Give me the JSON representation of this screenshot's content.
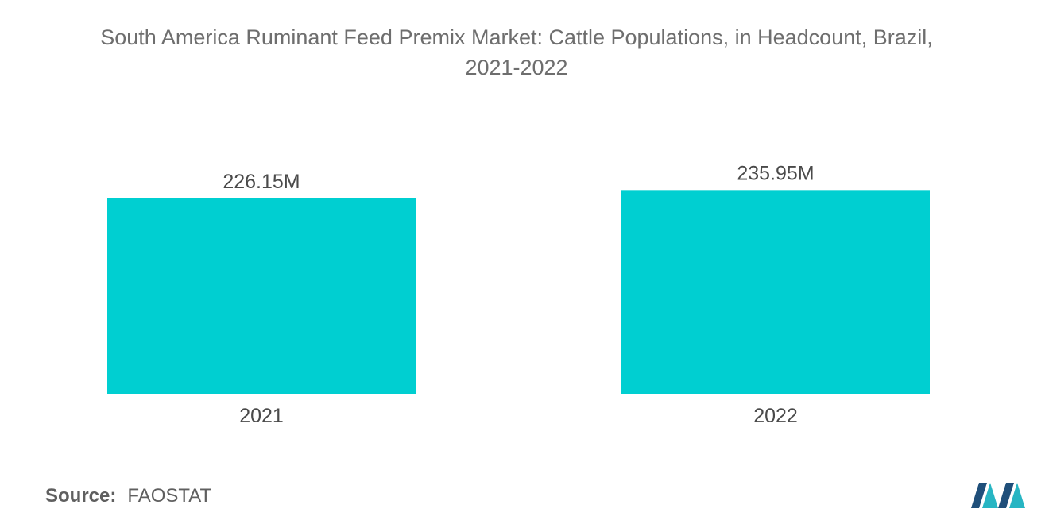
{
  "title_line1": "South America Ruminant Feed Premix Market: Cattle Populations, in Headcount, Brazil,",
  "title_line2": "2021-2022",
  "source_label": "Source:",
  "source_value": "FAOSTAT",
  "colors": {
    "bar": "#00cfd1",
    "text": "#6e6e6e",
    "logo_dark": "#1f4f7a",
    "logo_teal": "#27b5c3"
  },
  "chart_data": {
    "type": "bar",
    "title": "South America Ruminant Feed Premix Market: Cattle Populations, in Headcount, Brazil, 2021-2022",
    "categories": [
      "2021",
      "2022"
    ],
    "values": [
      226.15,
      235.95
    ],
    "value_labels": [
      "226.15M",
      "235.95M"
    ],
    "unit": "M",
    "xlabel": "",
    "ylabel": "",
    "grid": false,
    "legend": "none"
  }
}
